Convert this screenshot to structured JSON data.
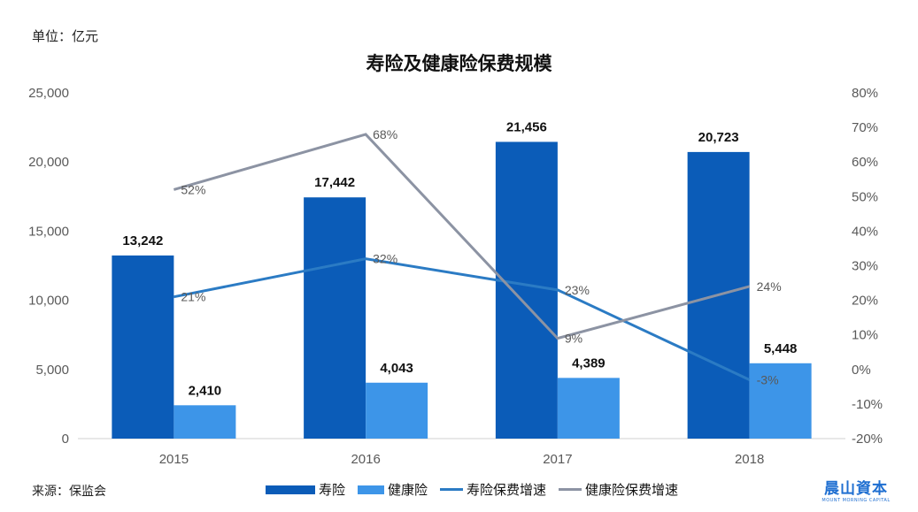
{
  "unit_label": "单位：亿元",
  "source_label": "来源：保监会",
  "logo": {
    "main": "晨山資本",
    "sub": "MOUNT MORNING CAPITAL"
  },
  "colors": {
    "life_bar": "#0b5cb8",
    "health_bar": "#3d95e8",
    "life_growth_line": "#2b7bc4",
    "health_growth_line": "#8c93a3"
  },
  "chart_data": {
    "type": "bar",
    "title": "寿险及健康险保费规模",
    "categories": [
      "2015",
      "2016",
      "2017",
      "2018"
    ],
    "ylim": [
      0,
      25000
    ],
    "y2lim": [
      -20,
      80
    ],
    "left_ticks": [
      "0",
      "5,000",
      "10,000",
      "15,000",
      "20,000",
      "25,000"
    ],
    "right_ticks": [
      "-20%",
      "-10%",
      "0%",
      "10%",
      "20%",
      "30%",
      "40%",
      "50%",
      "60%",
      "70%",
      "80%"
    ],
    "series": [
      {
        "name": "寿险",
        "kind": "bar",
        "values": [
          13242,
          17442,
          21456,
          20723
        ],
        "labels": [
          "13,242",
          "17,442",
          "21,456",
          "20,723"
        ]
      },
      {
        "name": "健康险",
        "kind": "bar",
        "values": [
          2410,
          4043,
          4389,
          5448
        ],
        "labels": [
          "2,410",
          "4,043",
          "4,389",
          "5,448"
        ]
      },
      {
        "name": "寿险保费增速",
        "kind": "line",
        "axis": "right",
        "values": [
          21,
          32,
          23,
          -3
        ],
        "labels": [
          "21%",
          "32%",
          "23%",
          "-3%"
        ]
      },
      {
        "name": "健康险保费增速",
        "kind": "line",
        "axis": "right",
        "values": [
          52,
          68,
          9,
          24
        ],
        "labels": [
          "52%",
          "68%",
          "9%",
          "24%"
        ]
      }
    ],
    "legend_position": "bottom"
  }
}
